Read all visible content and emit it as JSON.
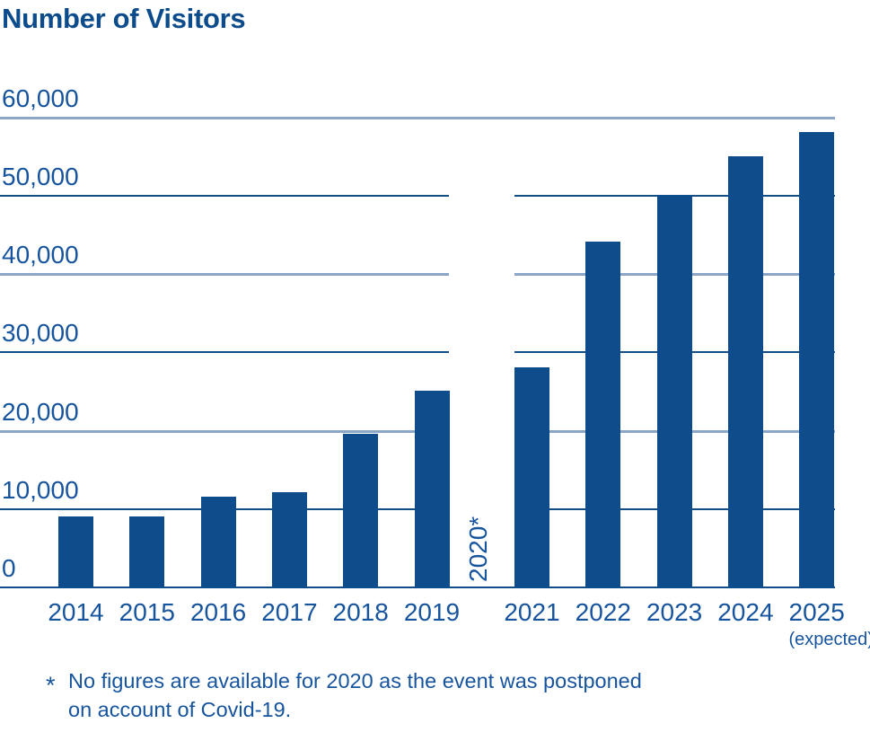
{
  "title": "Number of Visitors",
  "colors": {
    "bar": "#0e4c8c",
    "title_text": "#0d4c8c",
    "label_text": "#17549e",
    "grid_light": "#8ba6c6",
    "grid_dark": "#134d86",
    "axis": "#0e4c8c",
    "background": "#ffffff"
  },
  "footnote": {
    "marker": "*",
    "text": "No figures are available for 2020 as the event was postponed\non account of Covid-19."
  },
  "chart_data": {
    "type": "bar",
    "title": "Number of Visitors",
    "xlabel": "",
    "ylabel": "",
    "ylim": [
      0,
      60000
    ],
    "ytick_interval": 10000,
    "ytick_labels": [
      "0",
      "10,000",
      "20,000",
      "30,000",
      "40,000",
      "50,000",
      "60,000"
    ],
    "grid": "on",
    "legend": "none",
    "categories": [
      "2014",
      "2015",
      "2016",
      "2017",
      "2018",
      "2019",
      "2020",
      "2021",
      "2022",
      "2023",
      "2024",
      "2025"
    ],
    "values": [
      9000,
      9000,
      11500,
      12000,
      19500,
      25000,
      null,
      28000,
      44000,
      50000,
      55000,
      58000
    ],
    "gap_label": "2020*",
    "gap_note": "No figures available for 2020 (event postponed, Covid-19)",
    "last_category_note": "(expected)"
  }
}
